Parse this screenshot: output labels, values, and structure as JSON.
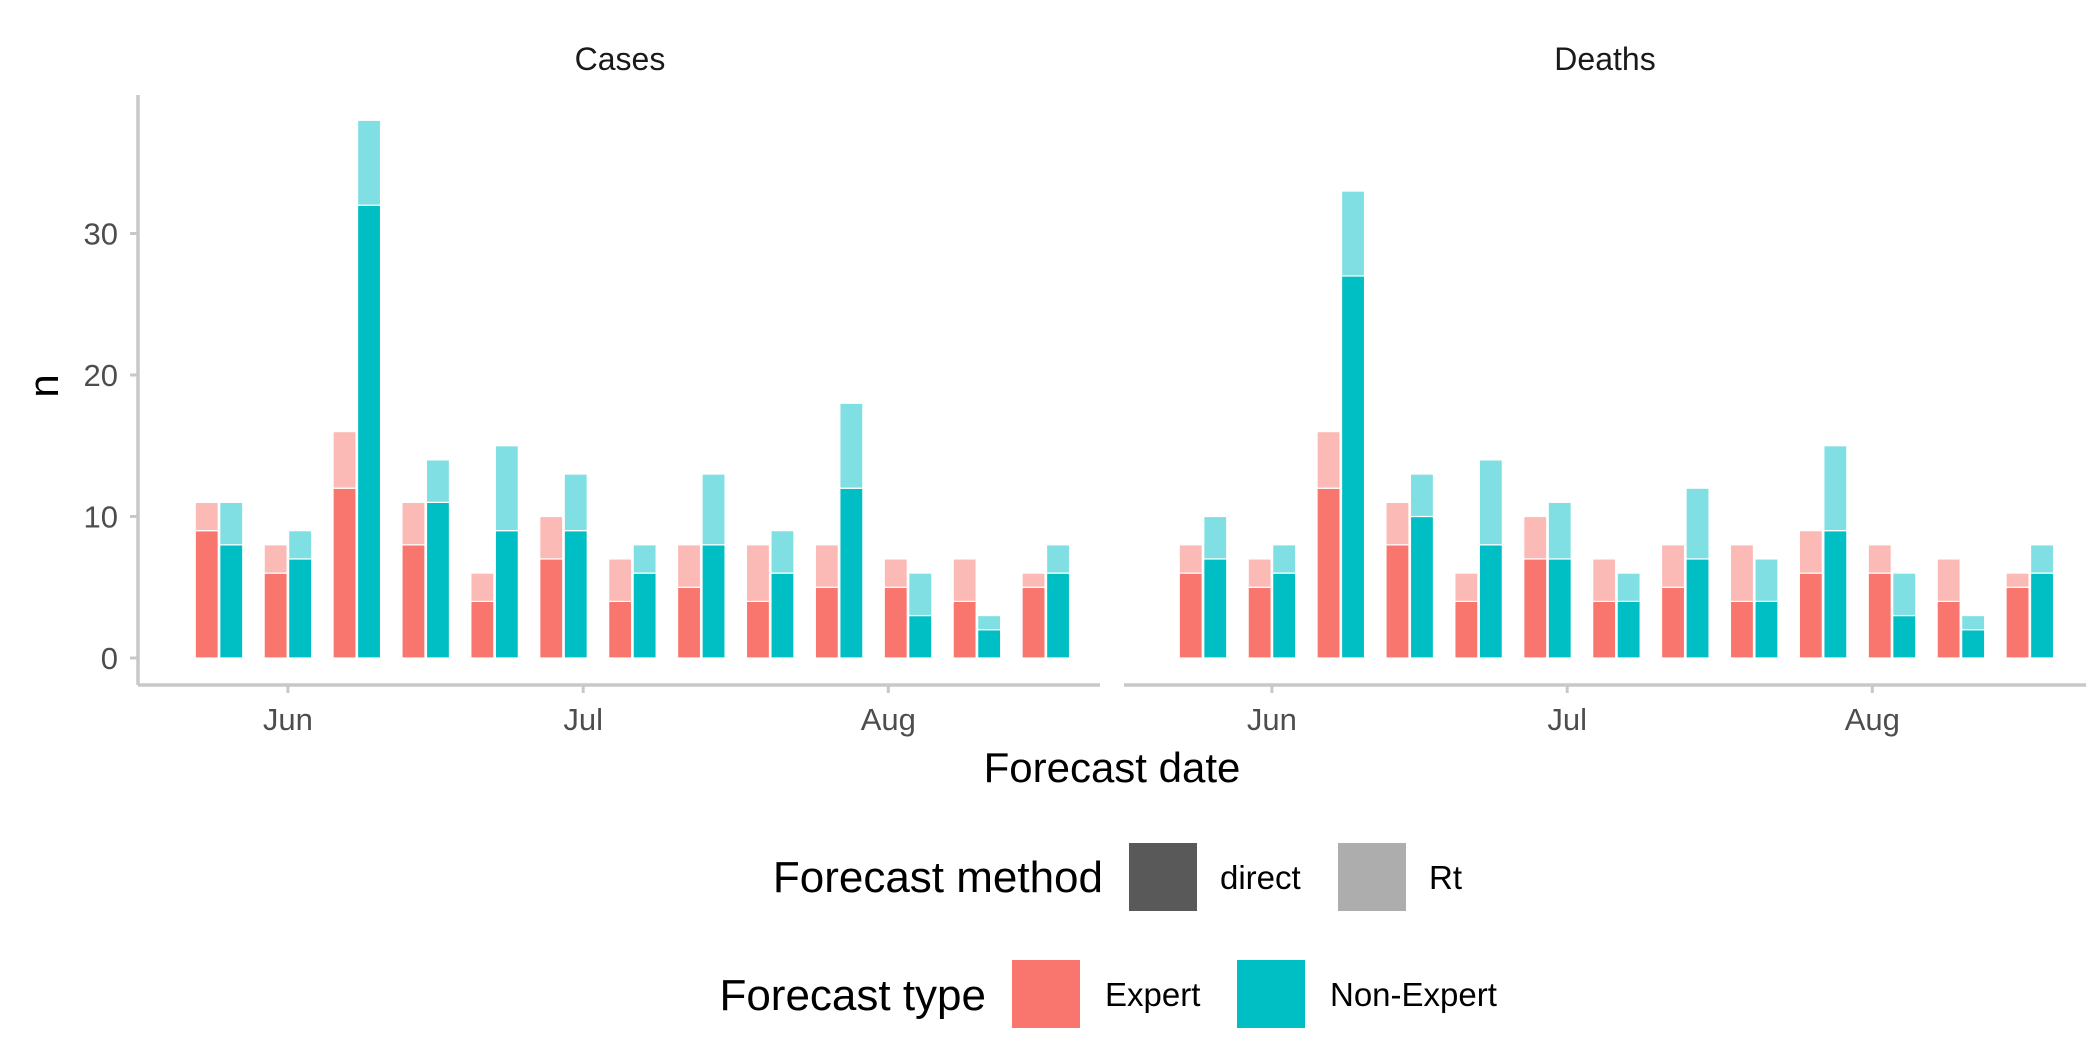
{
  "chart_data": {
    "type": "bar",
    "layout": "faceted stacked grouped bar chart",
    "xlabel": "Forecast date",
    "ylabel": "n",
    "ylim": [
      0,
      40
    ],
    "y_ticks": [
      0,
      10,
      20,
      30
    ],
    "x_ticks": [
      "Jun",
      "Jul",
      "Aug"
    ],
    "x_tick_dates": [
      "2020-06-01",
      "2020-07-01",
      "2020-08-01"
    ],
    "x": [
      "2020-05-25",
      "2020-06-01",
      "2020-06-08",
      "2020-06-15",
      "2020-06-22",
      "2020-06-29",
      "2020-07-06",
      "2020-07-13",
      "2020-07-20",
      "2020-07-27",
      "2020-08-03",
      "2020-08-10",
      "2020-08-17"
    ],
    "grid": false,
    "legend_position": "bottom",
    "legends": [
      {
        "title": "Forecast method",
        "entries": [
          {
            "label": "direct",
            "color": "#595959"
          },
          {
            "label": "Rt",
            "color": "#adadad"
          }
        ]
      },
      {
        "title": "Forecast type",
        "entries": [
          {
            "label": "Expert",
            "color": "#F8766D"
          },
          {
            "label": "Non-Expert",
            "color": "#00BFC4"
          }
        ]
      }
    ],
    "colors": {
      "Expert_direct": "#F8766D",
      "Expert_Rt": "#FBBAB6",
      "Non-Expert_direct": "#00BFC4",
      "Non-Expert_Rt": "#80DFE2"
    },
    "panels": [
      {
        "title": "Cases",
        "series": [
          {
            "name": "Expert",
            "direct": [
              9,
              6,
              12,
              8,
              4,
              7,
              4,
              5,
              4,
              5,
              5,
              4,
              5
            ],
            "Rt": [
              2,
              2,
              4,
              3,
              2,
              3,
              3,
              3,
              4,
              3,
              2,
              3,
              1
            ]
          },
          {
            "name": "Non-Expert",
            "direct": [
              8,
              7,
              32,
              11,
              9,
              9,
              6,
              8,
              6,
              12,
              3,
              2,
              6
            ],
            "Rt": [
              3,
              2,
              6,
              3,
              6,
              4,
              2,
              5,
              3,
              6,
              3,
              1,
              2
            ]
          }
        ]
      },
      {
        "title": "Deaths",
        "series": [
          {
            "name": "Expert",
            "direct": [
              6,
              5,
              12,
              8,
              4,
              7,
              4,
              5,
              4,
              6,
              6,
              4,
              5
            ],
            "Rt": [
              2,
              2,
              4,
              3,
              2,
              3,
              3,
              3,
              4,
              3,
              2,
              3,
              1
            ]
          },
          {
            "name": "Non-Expert",
            "direct": [
              7,
              6,
              27,
              10,
              8,
              7,
              4,
              7,
              4,
              9,
              3,
              2,
              6
            ],
            "Rt": [
              3,
              2,
              6,
              3,
              6,
              4,
              2,
              5,
              3,
              6,
              3,
              1,
              2
            ]
          }
        ]
      }
    ]
  }
}
